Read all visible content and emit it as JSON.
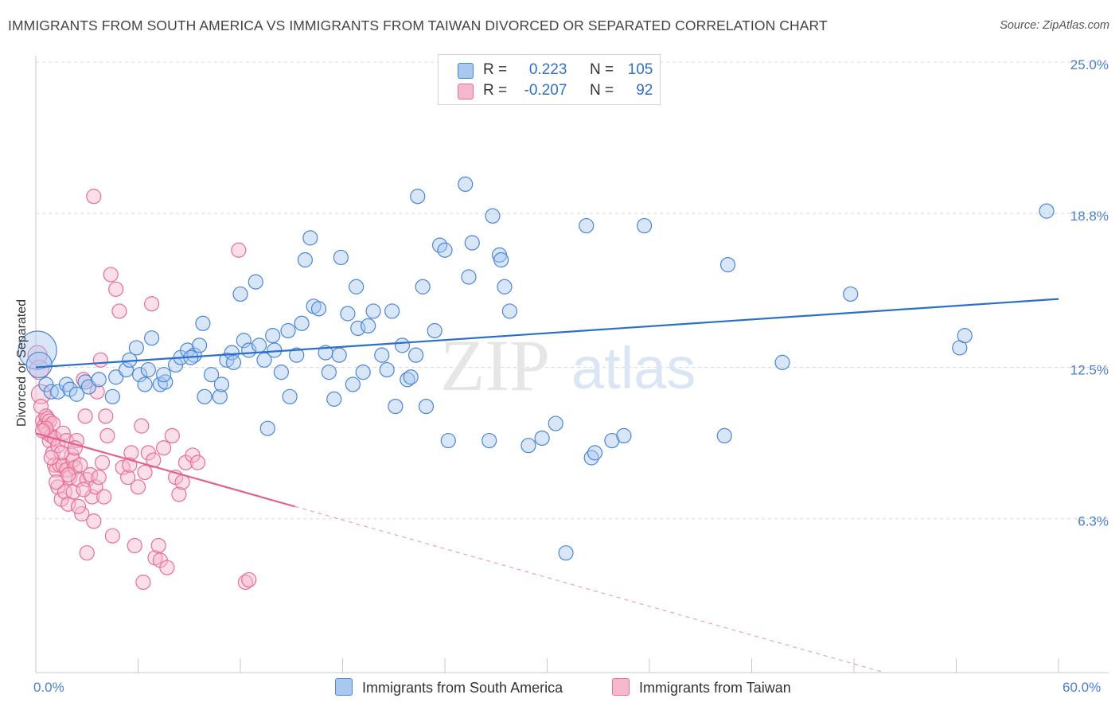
{
  "title": "IMMIGRANTS FROM SOUTH AMERICA VS IMMIGRANTS FROM TAIWAN DIVORCED OR SEPARATED CORRELATION CHART",
  "source": "Source: ZipAtlas.com",
  "watermark": {
    "zip": "ZIP",
    "atlas": "atlas"
  },
  "legend": {
    "r_label": "R =",
    "n_label": "N =",
    "series1": {
      "r": "0.223",
      "n": "105"
    },
    "series2": {
      "r": "-0.207",
      "n": "92"
    }
  },
  "colors": {
    "blue": "#4a86d8",
    "blue_fill": "#a9c8f0",
    "blue_line": "#2a6fcc",
    "pink": "#e86d95",
    "pink_fill": "#f6b8cc",
    "pink_line": "#e4608d",
    "tick_text": "#4a7fd4",
    "grid": "#d8d8d8"
  },
  "chart_data": {
    "type": "scatter",
    "title": "IMMIGRANTS FROM SOUTH AMERICA VS IMMIGRANTS FROM TAIWAN DIVORCED OR SEPARATED CORRELATION CHART",
    "xlabel": "",
    "ylabel": "Divorced or Separated",
    "xlim": [
      0,
      60
    ],
    "ylim": [
      0,
      25
    ],
    "x_tick_labels": {
      "left": "0.0%",
      "right": "60.0%"
    },
    "y_ticks": [
      {
        "value": 25.0,
        "label": "25.0%"
      },
      {
        "value": 18.8,
        "label": "18.8%"
      },
      {
        "value": 12.5,
        "label": "12.5%"
      },
      {
        "value": 6.3,
        "label": "6.3%"
      }
    ],
    "series": [
      {
        "name": "Immigrants from South America",
        "color": "blue",
        "r": 0.223,
        "n": 105,
        "trend": {
          "x0": 0,
          "y0": 12.5,
          "x1": 60,
          "y1": 15.3
        },
        "points": [
          [
            0.1,
            13.2
          ],
          [
            0.2,
            12.6
          ],
          [
            0.6,
            11.8
          ],
          [
            0.9,
            11.5
          ],
          [
            1.3,
            11.5
          ],
          [
            1.8,
            11.8
          ],
          [
            2.0,
            11.6
          ],
          [
            2.4,
            11.4
          ],
          [
            2.9,
            11.9
          ],
          [
            3.1,
            11.7
          ],
          [
            3.7,
            12.0
          ],
          [
            4.5,
            11.3
          ],
          [
            4.7,
            12.1
          ],
          [
            5.3,
            12.4
          ],
          [
            5.5,
            12.8
          ],
          [
            5.9,
            13.3
          ],
          [
            6.1,
            12.2
          ],
          [
            6.6,
            12.4
          ],
          [
            6.4,
            11.8
          ],
          [
            6.8,
            13.7
          ],
          [
            7.3,
            11.8
          ],
          [
            7.6,
            11.9
          ],
          [
            7.5,
            12.2
          ],
          [
            8.2,
            12.6
          ],
          [
            8.5,
            12.9
          ],
          [
            8.9,
            13.2
          ],
          [
            9.3,
            13.0
          ],
          [
            9.6,
            13.4
          ],
          [
            9.1,
            12.9
          ],
          [
            9.9,
            11.3
          ],
          [
            9.8,
            14.3
          ],
          [
            10.3,
            12.2
          ],
          [
            10.8,
            11.3
          ],
          [
            10.9,
            11.8
          ],
          [
            11.2,
            12.8
          ],
          [
            11.5,
            13.1
          ],
          [
            11.6,
            12.7
          ],
          [
            12.0,
            15.5
          ],
          [
            12.2,
            13.6
          ],
          [
            12.5,
            13.2
          ],
          [
            12.9,
            16.0
          ],
          [
            13.1,
            13.4
          ],
          [
            13.4,
            12.8
          ],
          [
            13.6,
            10.0
          ],
          [
            13.9,
            13.8
          ],
          [
            14.0,
            13.2
          ],
          [
            14.4,
            12.3
          ],
          [
            14.8,
            14.0
          ],
          [
            14.9,
            11.3
          ],
          [
            15.3,
            13.0
          ],
          [
            15.6,
            14.3
          ],
          [
            15.8,
            16.9
          ],
          [
            16.1,
            17.8
          ],
          [
            16.3,
            15.0
          ],
          [
            16.6,
            14.9
          ],
          [
            17.0,
            13.1
          ],
          [
            17.2,
            12.3
          ],
          [
            17.5,
            11.2
          ],
          [
            17.9,
            17.0
          ],
          [
            17.8,
            13.0
          ],
          [
            18.3,
            14.7
          ],
          [
            18.6,
            11.8
          ],
          [
            18.8,
            15.8
          ],
          [
            18.9,
            14.1
          ],
          [
            19.2,
            12.3
          ],
          [
            19.5,
            14.2
          ],
          [
            19.8,
            14.8
          ],
          [
            20.3,
            13.0
          ],
          [
            20.6,
            12.4
          ],
          [
            20.9,
            14.8
          ],
          [
            21.1,
            10.9
          ],
          [
            21.5,
            13.4
          ],
          [
            21.8,
            12.0
          ],
          [
            22.0,
            12.1
          ],
          [
            22.3,
            13.0
          ],
          [
            22.4,
            19.5
          ],
          [
            22.7,
            15.8
          ],
          [
            22.9,
            10.9
          ],
          [
            23.4,
            14.0
          ],
          [
            23.7,
            17.5
          ],
          [
            24.0,
            17.3
          ],
          [
            24.2,
            9.5
          ],
          [
            25.2,
            20.0
          ],
          [
            25.4,
            16.2
          ],
          [
            25.6,
            17.6
          ],
          [
            26.6,
            9.5
          ],
          [
            26.8,
            18.7
          ],
          [
            27.2,
            17.1
          ],
          [
            27.3,
            16.9
          ],
          [
            27.5,
            15.8
          ],
          [
            27.8,
            14.8
          ],
          [
            28.9,
            9.3
          ],
          [
            29.7,
            9.6
          ],
          [
            30.5,
            10.2
          ],
          [
            31.1,
            4.9
          ],
          [
            32.3,
            18.3
          ],
          [
            32.6,
            8.8
          ],
          [
            32.8,
            9.0
          ],
          [
            33.8,
            9.5
          ],
          [
            34.5,
            9.7
          ],
          [
            35.7,
            18.3
          ],
          [
            40.4,
            9.7
          ],
          [
            40.6,
            16.7
          ],
          [
            43.8,
            12.7
          ],
          [
            47.8,
            15.5
          ],
          [
            54.2,
            13.3
          ],
          [
            54.5,
            13.8
          ],
          [
            59.3,
            18.9
          ]
        ]
      },
      {
        "name": "Immigrants from Taiwan",
        "color": "pink",
        "r": -0.207,
        "n": 92,
        "trend_solid": {
          "x0": 0,
          "y0": 9.8,
          "x1": 15.2,
          "y1": 6.8
        },
        "trend_dashed": {
          "x0": 15.2,
          "y0": 6.8,
          "x1": 60,
          "y1": -2.0
        },
        "points": [
          [
            0.1,
            13.0
          ],
          [
            0.2,
            12.4
          ],
          [
            0.3,
            11.4
          ],
          [
            0.3,
            10.9
          ],
          [
            0.4,
            10.3
          ],
          [
            0.5,
            10.1
          ],
          [
            0.6,
            10.5
          ],
          [
            0.7,
            10.4
          ],
          [
            0.7,
            9.8
          ],
          [
            0.8,
            10.3
          ],
          [
            0.8,
            9.5
          ],
          [
            0.9,
            9.7
          ],
          [
            1.0,
            9.0
          ],
          [
            1.0,
            10.2
          ],
          [
            1.1,
            8.5
          ],
          [
            1.1,
            9.6
          ],
          [
            1.2,
            8.3
          ],
          [
            1.3,
            9.3
          ],
          [
            1.3,
            7.6
          ],
          [
            1.4,
            8.5
          ],
          [
            1.5,
            7.1
          ],
          [
            1.6,
            8.5
          ],
          [
            1.6,
            9.8
          ],
          [
            1.7,
            7.4
          ],
          [
            1.8,
            8.3
          ],
          [
            1.8,
            9.5
          ],
          [
            1.9,
            6.9
          ],
          [
            2.0,
            8.0
          ],
          [
            2.1,
            8.9
          ],
          [
            2.2,
            7.4
          ],
          [
            2.2,
            8.7
          ],
          [
            2.3,
            8.4
          ],
          [
            2.4,
            9.5
          ],
          [
            2.5,
            7.9
          ],
          [
            2.6,
            8.5
          ],
          [
            2.7,
            6.5
          ],
          [
            2.8,
            12.0
          ],
          [
            2.9,
            10.5
          ],
          [
            3.0,
            7.9
          ],
          [
            3.2,
            8.1
          ],
          [
            3.3,
            7.2
          ],
          [
            3.4,
            6.2
          ],
          [
            3.5,
            7.6
          ],
          [
            3.6,
            11.5
          ],
          [
            3.7,
            8.0
          ],
          [
            3.8,
            12.8
          ],
          [
            4.1,
            10.5
          ],
          [
            4.4,
            16.3
          ],
          [
            4.5,
            5.6
          ],
          [
            4.7,
            15.7
          ],
          [
            4.9,
            14.8
          ],
          [
            5.1,
            8.4
          ],
          [
            5.4,
            8.0
          ],
          [
            5.6,
            9.0
          ],
          [
            6.0,
            7.6
          ],
          [
            6.2,
            10.1
          ],
          [
            6.4,
            8.2
          ],
          [
            6.6,
            9.0
          ],
          [
            6.8,
            15.1
          ],
          [
            6.9,
            8.7
          ],
          [
            7.0,
            4.7
          ],
          [
            7.2,
            5.2
          ],
          [
            7.3,
            4.6
          ],
          [
            7.5,
            9.2
          ],
          [
            7.7,
            4.3
          ],
          [
            8.0,
            9.7
          ],
          [
            8.2,
            8.0
          ],
          [
            8.4,
            7.3
          ],
          [
            8.6,
            7.8
          ],
          [
            8.8,
            8.6
          ],
          [
            9.2,
            8.9
          ],
          [
            9.5,
            8.6
          ],
          [
            11.9,
            17.3
          ],
          [
            12.3,
            3.7
          ],
          [
            12.5,
            3.8
          ],
          [
            3.4,
            19.5
          ],
          [
            0.6,
            10.0
          ],
          [
            1.5,
            9.0
          ],
          [
            2.8,
            7.5
          ],
          [
            0.9,
            8.8
          ],
          [
            4.2,
            9.7
          ],
          [
            5.8,
            5.2
          ],
          [
            6.3,
            3.7
          ],
          [
            3.0,
            4.9
          ],
          [
            4.0,
            7.2
          ],
          [
            1.2,
            7.8
          ],
          [
            2.5,
            6.8
          ],
          [
            5.5,
            8.5
          ],
          [
            0.4,
            9.9
          ],
          [
            1.9,
            8.1
          ],
          [
            2.3,
            9.2
          ],
          [
            3.9,
            8.6
          ]
        ]
      }
    ]
  },
  "bottom_legend": {
    "series1": "Immigrants from South America",
    "series2": "Immigrants from Taiwan"
  }
}
